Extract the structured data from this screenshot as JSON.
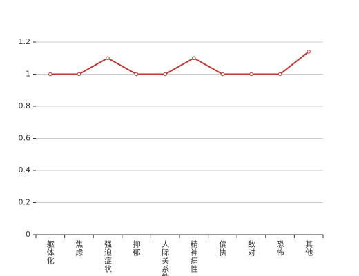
{
  "chart_data": {
    "type": "line",
    "categories": [
      "躯体化",
      "焦虑",
      "强迫症状",
      "抑郁",
      "人际关系敏感",
      "精神病性",
      "偏执",
      "敌对",
      "恐怖",
      "其他"
    ],
    "values": [
      1,
      1,
      1.1,
      1,
      1,
      1.1,
      1,
      1,
      1,
      1.14
    ],
    "color": "#c23531",
    "ylim": [
      0,
      1.2
    ],
    "yticks": [
      0,
      0.2,
      0.4,
      0.6,
      0.8,
      1,
      1.2
    ],
    "grid": true
  }
}
